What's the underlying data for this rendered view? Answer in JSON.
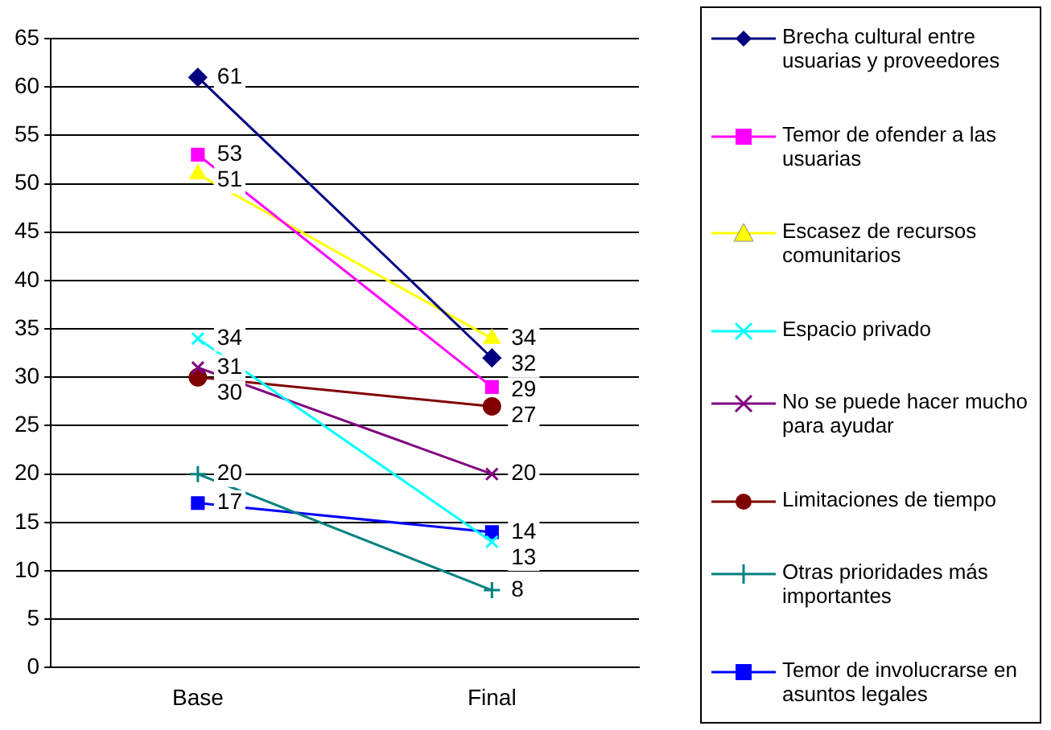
{
  "chart_data": {
    "type": "line",
    "categories": [
      "Base",
      "Final"
    ],
    "ylim": [
      0,
      65
    ],
    "yticks": [
      0,
      5,
      10,
      15,
      20,
      25,
      30,
      35,
      40,
      45,
      50,
      55,
      60,
      65
    ],
    "grid": "y",
    "legend": "right",
    "data_labels": true,
    "series": [
      {
        "name": "Brecha cultural entre usuarias y proveedores",
        "color": "#000080",
        "marker": "diamond",
        "values": [
          61,
          32
        ]
      },
      {
        "name": "Temor de ofender a las usuarias",
        "color": "#ff00ff",
        "marker": "square",
        "values": [
          53,
          29
        ]
      },
      {
        "name": "Escasez de recursos comunitarios",
        "color": "#ffff00",
        "marker": "triangle",
        "values": [
          51,
          34
        ]
      },
      {
        "name": "Espacio privado",
        "color": "#00ffff",
        "marker": "cross",
        "values": [
          34,
          13
        ]
      },
      {
        "name": "No se puede hacer mucho para ayudar",
        "color": "#800080",
        "marker": "cross",
        "values": [
          31,
          20
        ]
      },
      {
        "name": "Limitaciones de tiempo",
        "color": "#800000",
        "marker": "circle",
        "values": [
          30,
          27
        ]
      },
      {
        "name": "Otras prioridades más importantes",
        "color": "#008080",
        "marker": "plus",
        "values": [
          20,
          8
        ]
      },
      {
        "name": "Temor de involucrarse en asuntos legales",
        "color": "#0000ff",
        "marker": "square",
        "values": [
          17,
          14
        ]
      }
    ]
  }
}
